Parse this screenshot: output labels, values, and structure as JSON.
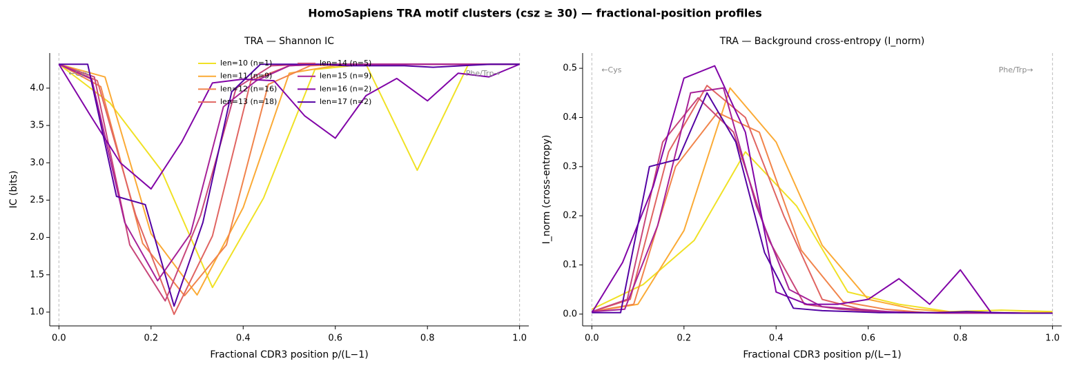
{
  "title": "HomoSapiens TRA motif clusters (csz ≥ 30) — fractional-position profiles",
  "chart_data": [
    {
      "type": "line",
      "title": "TRA — Shannon IC",
      "x_label": "Fractional CDR3 position  p/(L−1)",
      "y_label": "IC (bits)",
      "xlim": [
        -0.02,
        1.02
      ],
      "ylim": [
        0.815,
        4.47
      ],
      "xticks": [
        {
          "value": 0,
          "label": "0.0"
        },
        0.2,
        0.4,
        0.6,
        0.8,
        {
          "value": 1,
          "label": "1.0"
        }
      ],
      "yticks": [
        {
          "value": 1,
          "label": "1.0"
        },
        1.5,
        {
          "value": 2,
          "label": "2.0"
        },
        2.5,
        {
          "value": 3,
          "label": "3.0"
        },
        3.5,
        {
          "value": 4,
          "label": "4.0"
        }
      ],
      "reference_lines": [
        0,
        1
      ],
      "annotations": [
        "←Cys",
        "Phe/Trp→"
      ],
      "legend": "upper center",
      "legend_columns": 2,
      "series": [
        {
          "name": "len=10 (n=1)",
          "color": "#f0e125",
          "x": [
            0,
            0.1111,
            0.2222,
            0.3333,
            0.4444,
            0.5556,
            0.6667,
            0.7778,
            0.8889,
            1
          ],
          "values": [
            4.32,
            3.8,
            2.9,
            1.33,
            2.53,
            4.25,
            4.32,
            2.9,
            4.32,
            4.32
          ]
        },
        {
          "name": "len=11 (n=9)",
          "color": "#fbaa35",
          "x": [
            0,
            0.1,
            0.2,
            0.3,
            0.4,
            0.5,
            0.6,
            0.7,
            0.8,
            0.9,
            1
          ],
          "values": [
            4.32,
            4.15,
            2.05,
            1.23,
            2.4,
            4.2,
            4.3,
            4.32,
            4.32,
            4.32,
            4.32
          ]
        },
        {
          "name": "len=12 (n=16)",
          "color": "#f1844b",
          "x": [
            0,
            0.0909,
            0.1818,
            0.2727,
            0.3636,
            0.4545,
            0.5455,
            0.6364,
            0.7273,
            0.8182,
            0.9091,
            1
          ],
          "values": [
            4.32,
            4.02,
            1.92,
            1.22,
            1.9,
            4.05,
            4.3,
            4.32,
            4.32,
            4.32,
            4.32,
            4.32
          ]
        },
        {
          "name": "len=13 (n=18)",
          "color": "#e06461",
          "x": [
            0,
            0.0833,
            0.1667,
            0.25,
            0.3333,
            0.4167,
            0.5,
            0.5833,
            0.6667,
            0.75,
            0.8333,
            0.9167,
            1
          ],
          "values": [
            4.32,
            4.1,
            2.3,
            0.97,
            2.02,
            4.1,
            4.3,
            4.32,
            4.32,
            4.32,
            4.32,
            4.32,
            4.32
          ]
        },
        {
          "name": "len=14 (n=5)",
          "color": "#c8467a",
          "x": [
            0,
            0.0769,
            0.1538,
            0.2308,
            0.3077,
            0.3846,
            0.4615,
            0.5385,
            0.6154,
            0.6923,
            0.7692,
            0.8462,
            0.9231,
            1
          ],
          "values": [
            4.32,
            4.15,
            1.9,
            1.15,
            2.3,
            4.0,
            4.3,
            4.32,
            4.32,
            4.32,
            4.32,
            4.32,
            4.32,
            4.32
          ]
        },
        {
          "name": "len=15 (n=9)",
          "color": "#a72197",
          "x": [
            0,
            0.0714,
            0.1429,
            0.2143,
            0.2857,
            0.3571,
            0.4286,
            0.5,
            0.5714,
            0.6429,
            0.7143,
            0.7857,
            0.8571,
            0.9286,
            1
          ],
          "values": [
            4.32,
            4.12,
            2.2,
            1.42,
            2.05,
            3.75,
            4.1,
            4.3,
            4.32,
            4.32,
            4.32,
            4.32,
            4.32,
            4.32,
            4.32
          ]
        },
        {
          "name": "len=16 (n=2)",
          "color": "#8104a7",
          "x": [
            0,
            0.0667,
            0.1333,
            0.2,
            0.2667,
            0.3333,
            0.4,
            0.4667,
            0.5333,
            0.6,
            0.6667,
            0.7333,
            0.8,
            0.8667,
            0.9333,
            1
          ],
          "values": [
            4.32,
            3.65,
            3.0,
            2.65,
            3.28,
            4.07,
            4.12,
            4.1,
            3.63,
            3.33,
            3.9,
            4.13,
            3.83,
            4.2,
            4.15,
            4.32
          ]
        },
        {
          "name": "len=17 (n=2)",
          "color": "#5302a3",
          "x": [
            0,
            0.0625,
            0.125,
            0.1875,
            0.25,
            0.3125,
            0.375,
            0.4375,
            0.5,
            0.5625,
            0.625,
            0.6875,
            0.75,
            0.8125,
            0.875,
            0.9375,
            1
          ],
          "values": [
            4.32,
            4.32,
            2.55,
            2.44,
            1.08,
            2.2,
            3.95,
            4.32,
            4.32,
            4.32,
            4.3,
            4.3,
            4.3,
            4.28,
            4.3,
            4.32,
            4.32
          ]
        }
      ]
    },
    {
      "type": "line",
      "title": "TRA — Background cross-entropy (I_norm)",
      "x_label": "Fractional CDR3 position  p/(L−1)",
      "y_label": "I_norm (cross-entropy)",
      "xlim": [
        -0.02,
        1.02
      ],
      "ylim": [
        -0.024,
        0.531
      ],
      "xticks": [
        {
          "value": 0,
          "label": "0.0"
        },
        0.2,
        0.4,
        0.6,
        0.8,
        {
          "value": 1,
          "label": "1.0"
        }
      ],
      "yticks": [
        {
          "value": 0,
          "label": "0.0"
        },
        0.1,
        0.2,
        0.3,
        0.4,
        0.5
      ],
      "reference_lines": [
        0,
        1
      ],
      "annotations": [
        "←Cys",
        "Phe/Trp→"
      ],
      "series": [
        {
          "color": "#f0e125",
          "x": [
            0,
            0.1111,
            0.2222,
            0.3333,
            0.4444,
            0.5556,
            0.6667,
            0.7778,
            0.8889,
            1
          ],
          "values": [
            0.01,
            0.06,
            0.15,
            0.33,
            0.22,
            0.045,
            0.02,
            0.005,
            0.008,
            0.005
          ]
        },
        {
          "color": "#fbaa35",
          "x": [
            0,
            0.1,
            0.2,
            0.3,
            0.4,
            0.5,
            0.6,
            0.7,
            0.8,
            0.9,
            1
          ],
          "values": [
            0.005,
            0.02,
            0.17,
            0.46,
            0.35,
            0.14,
            0.03,
            0.01,
            0.003,
            0.003,
            0.003
          ]
        },
        {
          "color": "#f1844b",
          "x": [
            0,
            0.0909,
            0.1818,
            0.2727,
            0.3636,
            0.4545,
            0.5455,
            0.6364,
            0.7273,
            0.8182,
            0.9091,
            1
          ],
          "values": [
            0.005,
            0.02,
            0.3,
            0.41,
            0.37,
            0.13,
            0.025,
            0.01,
            0.003,
            0.003,
            0.002,
            0.002
          ]
        },
        {
          "color": "#e06461",
          "x": [
            0,
            0.0833,
            0.1667,
            0.25,
            0.3333,
            0.4167,
            0.5,
            0.5833,
            0.6667,
            0.75,
            0.8333,
            0.9167,
            1
          ],
          "values": [
            0.005,
            0.03,
            0.33,
            0.465,
            0.4,
            0.2,
            0.03,
            0.01,
            0.003,
            0.003,
            0.003,
            0.002,
            0.002
          ]
        },
        {
          "color": "#c8467a",
          "x": [
            0,
            0.0769,
            0.1538,
            0.2308,
            0.3077,
            0.3846,
            0.4615,
            0.5385,
            0.6154,
            0.6923,
            0.7692,
            0.8462,
            0.9231,
            1
          ],
          "values": [
            0.005,
            0.03,
            0.35,
            0.44,
            0.37,
            0.15,
            0.02,
            0.01,
            0.005,
            0.003,
            0.002,
            0.002,
            0.002,
            0.002
          ]
        },
        {
          "color": "#a72197",
          "x": [
            0,
            0.0714,
            0.1429,
            0.2143,
            0.2857,
            0.3571,
            0.4286,
            0.5,
            0.5714,
            0.6429,
            0.7143,
            0.7857,
            0.8571,
            0.9286,
            1
          ],
          "values": [
            0.005,
            0.01,
            0.18,
            0.45,
            0.46,
            0.22,
            0.05,
            0.015,
            0.01,
            0.005,
            0.003,
            0.002,
            0.002,
            0.002,
            0.002
          ]
        },
        {
          "color": "#8104a7",
          "x": [
            0,
            0.0667,
            0.1333,
            0.2,
            0.2667,
            0.3333,
            0.4,
            0.4667,
            0.5333,
            0.6,
            0.6667,
            0.7333,
            0.8,
            0.8667,
            0.9333,
            1
          ],
          "values": [
            0.003,
            0.105,
            0.26,
            0.48,
            0.505,
            0.37,
            0.045,
            0.02,
            0.02,
            0.03,
            0.072,
            0.02,
            0.09,
            0.003,
            0.002,
            0.002
          ]
        },
        {
          "color": "#5302a3",
          "x": [
            0,
            0.0625,
            0.125,
            0.1875,
            0.25,
            0.3125,
            0.375,
            0.4375,
            0.5,
            0.5625,
            0.625,
            0.6875,
            0.75,
            0.8125,
            0.875,
            0.9375,
            1
          ],
          "values": [
            0.003,
            0.003,
            0.3,
            0.315,
            0.45,
            0.35,
            0.125,
            0.012,
            0.007,
            0.005,
            0.003,
            0.003,
            0.003,
            0.005,
            0.003,
            0.002,
            0.002
          ]
        }
      ]
    }
  ]
}
